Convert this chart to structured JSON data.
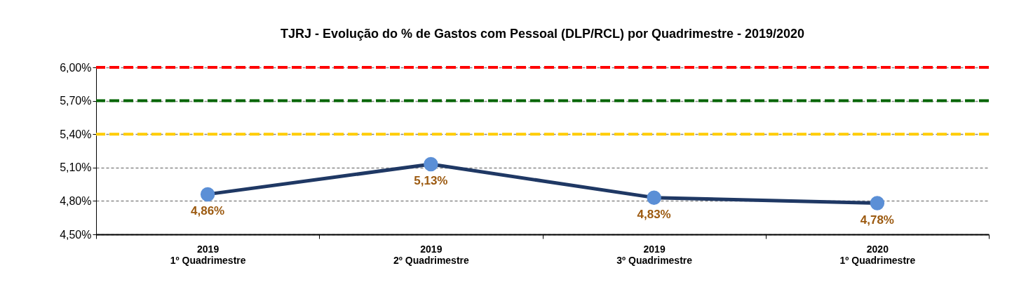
{
  "chart_data": {
    "type": "line",
    "title": "TJRJ - Evolução do % de Gastos com Pessoal (DLP/RCL) por Quadrimestre - 2019/2020",
    "categories": [
      "2019\n1º Quadrimestre",
      "2019\n2º Quadrimestre",
      "2019\n3º Quadrimestre",
      "2020\n1º Quadrimestre"
    ],
    "series": [
      {
        "color": "#1f3864",
        "values": [
          4.86,
          5.13,
          4.83,
          4.78
        ],
        "value_labels": [
          "4,86%",
          "5,13%",
          "4,83%",
          "4,78%"
        ]
      }
    ],
    "ylim": [
      4.5,
      6.0
    ],
    "yticks": [
      {
        "value": 4.5,
        "label": "4,50%"
      },
      {
        "value": 4.8,
        "label": "4,80%"
      },
      {
        "value": 5.1,
        "label": "5,10%"
      },
      {
        "value": 5.4,
        "label": "5,40%"
      },
      {
        "value": 5.7,
        "label": "5,70%"
      },
      {
        "value": 6.0,
        "label": "6,00%"
      }
    ],
    "ref_lines": [
      {
        "axis": "y",
        "value": 6.0,
        "color": "#ff0000",
        "line_style": "dashed"
      },
      {
        "axis": "y",
        "value": 5.7,
        "color": "#006400",
        "line_style": "dashed"
      },
      {
        "axis": "y",
        "value": 5.4,
        "color": "#ffcc00",
        "line_style": "dashed"
      }
    ],
    "grid": "y",
    "marker": "circle",
    "line_style": "solid"
  }
}
